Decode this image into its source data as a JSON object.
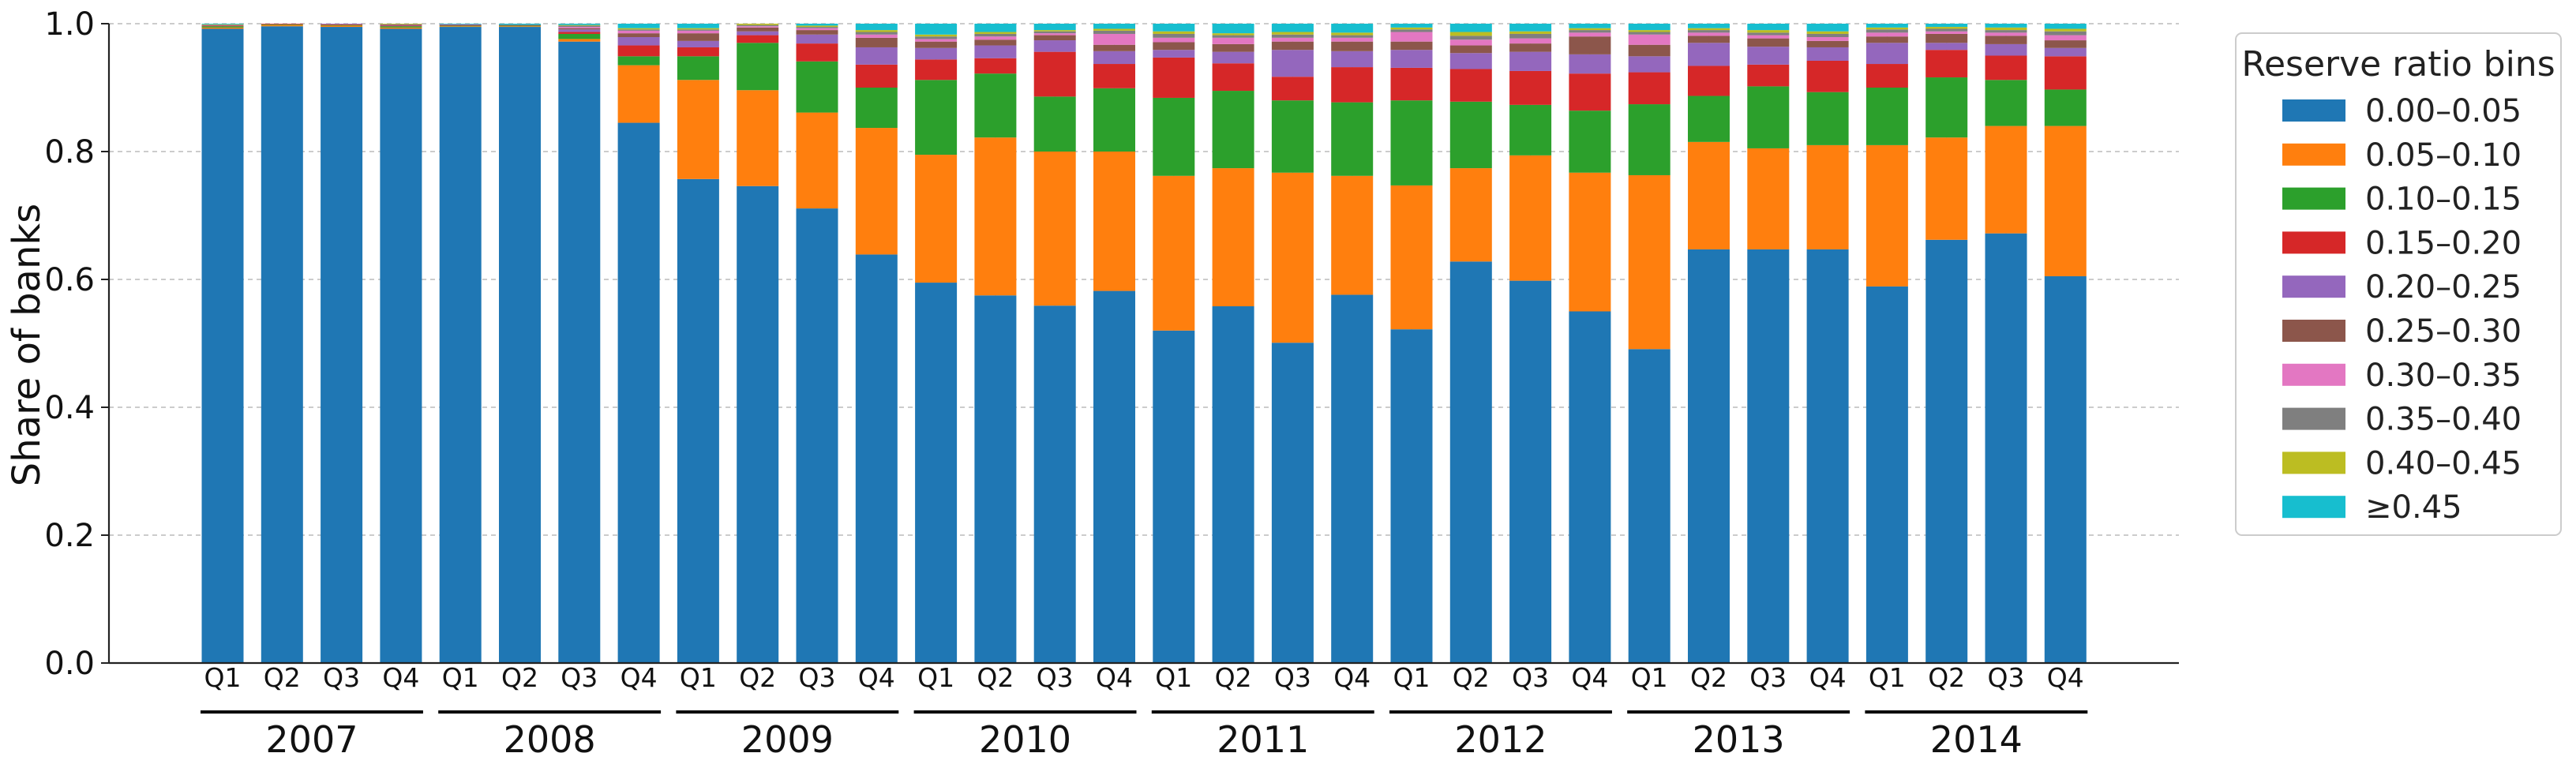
{
  "chart_data": {
    "type": "bar",
    "stacked": true,
    "ylabel": "Share of banks",
    "xlabel": "",
    "ylim": [
      0,
      1.0
    ],
    "yticks": [
      0.0,
      0.2,
      0.4,
      0.6,
      0.8,
      1.0
    ],
    "ytick_labels": [
      "0.0",
      "0.2",
      "0.4",
      "0.6",
      "0.8",
      "1.0"
    ],
    "grid": true,
    "legend": {
      "title": "Reserve ratio bins",
      "position": "right"
    },
    "years": [
      "2007",
      "2008",
      "2009",
      "2010",
      "2011",
      "2012",
      "2013",
      "2014"
    ],
    "quarters": [
      "Q1",
      "Q2",
      "Q3",
      "Q4"
    ],
    "categories": [
      "2007 Q1",
      "2007 Q2",
      "2007 Q3",
      "2007 Q4",
      "2008 Q1",
      "2008 Q2",
      "2008 Q3",
      "2008 Q4",
      "2009 Q1",
      "2009 Q2",
      "2009 Q3",
      "2009 Q4",
      "2010 Q1",
      "2010 Q2",
      "2010 Q3",
      "2010 Q4",
      "2011 Q1",
      "2011 Q2",
      "2011 Q3",
      "2011 Q4",
      "2012 Q1",
      "2012 Q2",
      "2012 Q3",
      "2012 Q4",
      "2013 Q1",
      "2013 Q2",
      "2013 Q3",
      "2013 Q4",
      "2014 Q1",
      "2014 Q2",
      "2014 Q3",
      "2014 Q4"
    ],
    "series": [
      {
        "name": "0.00–0.05",
        "color": "#1f77b4",
        "values": [
          0.992,
          0.996,
          0.995,
          0.992,
          0.995,
          0.995,
          0.972,
          0.845,
          0.757,
          0.746,
          0.711,
          0.639,
          0.595,
          0.575,
          0.559,
          0.582,
          0.52,
          0.558,
          0.501,
          0.576,
          0.522,
          0.628,
          0.598,
          0.55,
          0.491,
          0.647,
          0.647,
          0.647,
          0.589,
          0.662,
          0.672,
          0.605
        ]
      },
      {
        "name": "0.05–0.10",
        "color": "#ff7f0e",
        "values": [
          0.002,
          0.002,
          0.002,
          0.002,
          0.001,
          0.001,
          0.004,
          0.09,
          0.155,
          0.15,
          0.15,
          0.198,
          0.2,
          0.247,
          0.241,
          0.218,
          0.242,
          0.216,
          0.266,
          0.186,
          0.225,
          0.146,
          0.196,
          0.217,
          0.272,
          0.168,
          0.158,
          0.163,
          0.221,
          0.16,
          0.168,
          0.235
        ]
      },
      {
        "name": "0.10–0.15",
        "color": "#2ca02c",
        "values": [
          0.002,
          0.001,
          0.001,
          0.002,
          0.001,
          0.001,
          0.008,
          0.014,
          0.037,
          0.074,
          0.08,
          0.063,
          0.117,
          0.1,
          0.086,
          0.099,
          0.122,
          0.121,
          0.113,
          0.115,
          0.133,
          0.104,
          0.079,
          0.097,
          0.111,
          0.072,
          0.097,
          0.083,
          0.09,
          0.094,
          0.072,
          0.057
        ]
      },
      {
        "name": "0.15–0.20",
        "color": "#d62728",
        "values": [
          0.001,
          0.001,
          0.001,
          0.001,
          0.001,
          0.001,
          0.003,
          0.017,
          0.014,
          0.012,
          0.028,
          0.036,
          0.032,
          0.024,
          0.07,
          0.038,
          0.063,
          0.043,
          0.037,
          0.055,
          0.051,
          0.051,
          0.053,
          0.058,
          0.05,
          0.047,
          0.034,
          0.049,
          0.037,
          0.043,
          0.038,
          0.052
        ]
      },
      {
        "name": "0.20–0.25",
        "color": "#9467bd",
        "values": [
          0.001,
          0.0,
          0.001,
          0.001,
          0.001,
          0.0,
          0.004,
          0.013,
          0.01,
          0.006,
          0.014,
          0.027,
          0.018,
          0.02,
          0.018,
          0.02,
          0.012,
          0.018,
          0.042,
          0.025,
          0.028,
          0.025,
          0.03,
          0.03,
          0.025,
          0.036,
          0.028,
          0.021,
          0.033,
          0.011,
          0.018,
          0.013
        ]
      },
      {
        "name": "0.25–0.30",
        "color": "#8c564b",
        "values": [
          0.0,
          0.0,
          0.0,
          0.001,
          0.0,
          0.0,
          0.002,
          0.006,
          0.012,
          0.006,
          0.007,
          0.015,
          0.01,
          0.009,
          0.008,
          0.01,
          0.012,
          0.012,
          0.013,
          0.015,
          0.013,
          0.012,
          0.013,
          0.028,
          0.018,
          0.011,
          0.013,
          0.01,
          0.01,
          0.014,
          0.013,
          0.012
        ]
      },
      {
        "name": "0.30–0.35",
        "color": "#e377c2",
        "values": [
          0.0,
          0.0,
          0.0,
          0.0,
          0.0,
          0.0,
          0.002,
          0.004,
          0.004,
          0.002,
          0.003,
          0.005,
          0.004,
          0.005,
          0.003,
          0.017,
          0.007,
          0.01,
          0.006,
          0.006,
          0.015,
          0.009,
          0.008,
          0.006,
          0.016,
          0.005,
          0.005,
          0.006,
          0.006,
          0.004,
          0.005,
          0.008
        ]
      },
      {
        "name": "0.35–0.40",
        "color": "#7f7f7f",
        "values": [
          0.0,
          0.0,
          0.0,
          0.0,
          0.0,
          0.0,
          0.002,
          0.002,
          0.002,
          0.002,
          0.002,
          0.004,
          0.004,
          0.004,
          0.003,
          0.005,
          0.006,
          0.004,
          0.005,
          0.004,
          0.004,
          0.006,
          0.007,
          0.004,
          0.004,
          0.004,
          0.004,
          0.005,
          0.005,
          0.004,
          0.004,
          0.006
        ]
      },
      {
        "name": "0.40–0.45",
        "color": "#bcbd22",
        "values": [
          0.001,
          0.0,
          0.0,
          0.001,
          0.0,
          0.0,
          0.001,
          0.002,
          0.002,
          0.002,
          0.002,
          0.003,
          0.003,
          0.003,
          0.002,
          0.003,
          0.004,
          0.003,
          0.004,
          0.004,
          0.003,
          0.006,
          0.004,
          0.003,
          0.003,
          0.003,
          0.004,
          0.004,
          0.003,
          0.003,
          0.004,
          0.004
        ]
      },
      {
        "name": "≥0.45",
        "color": "#17becf",
        "values": [
          0.001,
          0.0,
          0.0,
          0.0,
          0.001,
          0.002,
          0.002,
          0.007,
          0.007,
          0.0,
          0.003,
          0.01,
          0.017,
          0.013,
          0.01,
          0.008,
          0.012,
          0.015,
          0.013,
          0.014,
          0.006,
          0.013,
          0.012,
          0.007,
          0.01,
          0.007,
          0.01,
          0.012,
          0.006,
          0.005,
          0.006,
          0.008
        ]
      }
    ]
  }
}
